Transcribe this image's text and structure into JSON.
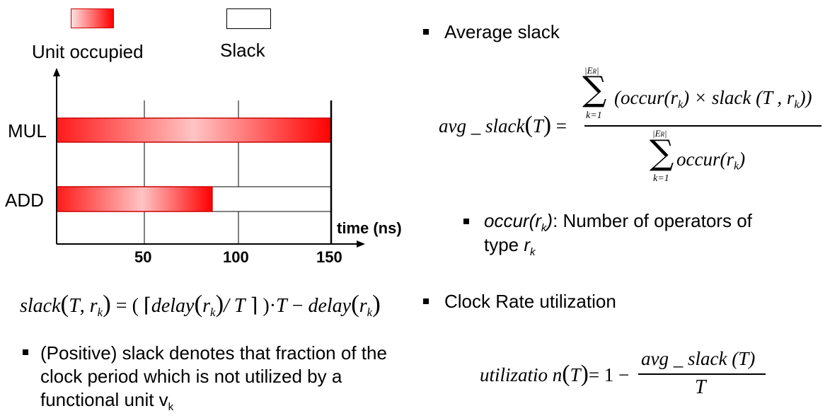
{
  "legend": {
    "occupied_label": "Unit occupied",
    "slack_label": "Slack",
    "occupied_color": "#ff0000",
    "occupied_color_light": "#ffe0e0"
  },
  "chart": {
    "units": [
      "MUL",
      "ADD"
    ],
    "x_ticks": [
      "50",
      "100",
      "150"
    ],
    "x_label": "time (ns)",
    "bars": [
      {
        "unit": "MUL",
        "start": 0,
        "end": 150
      },
      {
        "unit": "ADD",
        "start": 0,
        "end": 85
      }
    ],
    "clock_period": 150,
    "x_max": 150
  },
  "slack_formula": {
    "lhs_fn": "slack",
    "lhs_args_T": "T",
    "lhs_args_r": "r",
    "sub_k": "k",
    "rhs_delay": "delay",
    "rhs_over_T": "/ T",
    "rhs_times_T": "T",
    "rhs_minus_delay": "delay"
  },
  "left_bullet": {
    "line1": "(Positive) slack denotes that fraction of the",
    "line2": "clock period which is not utilized by a",
    "line3": "functional unit v",
    "line3_sub": "k"
  },
  "right": {
    "avg_title": "Average slack",
    "avg_lhs": "avg _ slack",
    "avg_T": "T",
    "avg_num_term": "(occur(r",
    "avg_num_mid": ") × slack (T , r",
    "avg_num_end": "))",
    "avg_den_term": "occur(r",
    "avg_den_end": ")",
    "sum_upper": "E",
    "sum_upper_sub": "R",
    "sum_lower": "k=1",
    "occur_def_fn": "occur(r",
    "occur_def_sub": "k",
    "occur_def_close": ")",
    "occur_def_text": ": Number of operators of",
    "occur_def_line2": "type ",
    "occur_def_line2_var": "r",
    "occur_def_line2_sub": "k",
    "clock_title": "Clock Rate utilization",
    "util_lhs": "utilizatio n",
    "util_T": "T",
    "util_rhs_one": "= 1 −",
    "util_num": "avg _ slack (T)",
    "util_den": "T"
  }
}
